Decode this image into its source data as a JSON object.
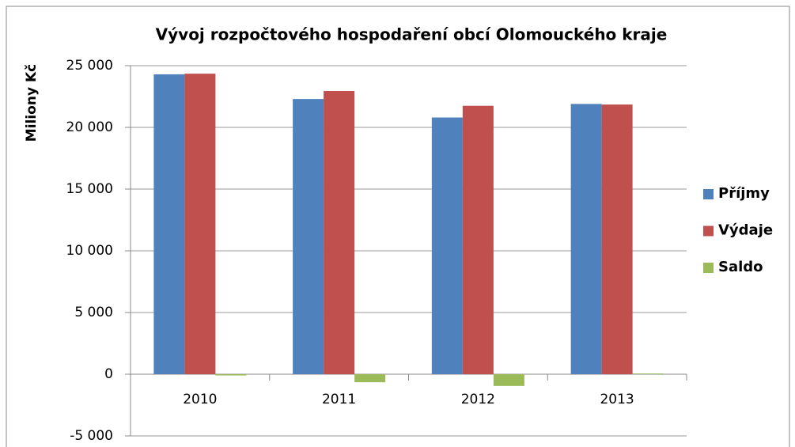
{
  "chart_data": {
    "type": "bar",
    "title": "Vývoj rozpočtového hospodaření obcí Olomouckého kraje",
    "y_label": "Miliony  Kč",
    "categories": [
      "2010",
      "2011",
      "2012",
      "2013"
    ],
    "series": [
      {
        "name": "Příjmy",
        "color": "#4f81bd",
        "values": [
          24300,
          22300,
          20800,
          21900
        ]
      },
      {
        "name": "Výdaje",
        "color": "#c0504d",
        "values": [
          24350,
          22950,
          21750,
          21850
        ]
      },
      {
        "name": "Saldo",
        "color": "#9bbb59",
        "values": [
          -100,
          -650,
          -950,
          60
        ]
      }
    ],
    "ylim": [
      -5000,
      25000
    ],
    "yticks": [
      {
        "value": -5000,
        "label": "-5 000"
      },
      0,
      {
        "value": 5000,
        "label": "5 000"
      },
      {
        "value": 10000,
        "label": "10 000"
      },
      {
        "value": 15000,
        "label": "15 000"
      },
      {
        "value": 20000,
        "label": "20 000"
      },
      {
        "value": 25000,
        "label": "25 000"
      }
    ],
    "grid": true,
    "legend": "right"
  }
}
